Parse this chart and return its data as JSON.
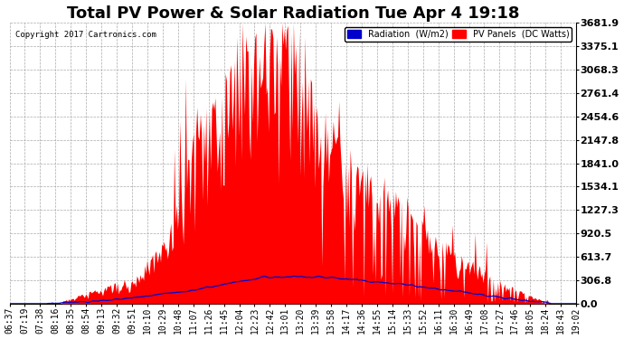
{
  "title": "Total PV Power & Solar Radiation Tue Apr 4 19:18",
  "copyright": "Copyright 2017 Cartronics.com",
  "legend_radiation": "Radiation  (W/m2)",
  "legend_pv": "PV Panels  (DC Watts)",
  "yticks": [
    0.0,
    306.8,
    613.7,
    920.5,
    1227.3,
    1534.1,
    1841.0,
    2147.8,
    2454.6,
    2761.4,
    3068.3,
    3375.1,
    3681.9
  ],
  "ylim": [
    0,
    3681.9
  ],
  "background_color": "#ffffff",
  "plot_bg_color": "#ffffff",
  "grid_color": "#aaaaaa",
  "pv_fill_color": "#ff0000",
  "radiation_line_color": "#0000cc",
  "title_fontsize": 13,
  "tick_fontsize": 7,
  "x_labels": [
    "06:37",
    "07:19",
    "07:38",
    "08:16",
    "08:35",
    "08:54",
    "09:13",
    "09:32",
    "09:51",
    "10:10",
    "10:29",
    "10:48",
    "11:07",
    "11:26",
    "11:45",
    "12:04",
    "12:23",
    "12:42",
    "13:01",
    "13:20",
    "13:39",
    "13:58",
    "14:17",
    "14:36",
    "14:55",
    "15:14",
    "15:33",
    "15:52",
    "16:11",
    "16:30",
    "16:49",
    "17:08",
    "17:27",
    "17:46",
    "18:05",
    "18:24",
    "18:43",
    "19:02"
  ]
}
